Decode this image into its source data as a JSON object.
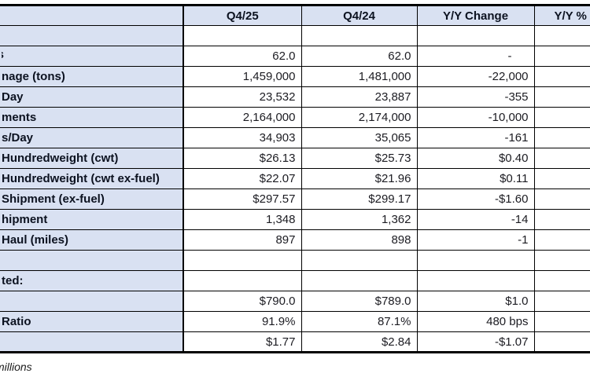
{
  "table": {
    "header": {
      "metric": "",
      "q4_25": "Q4/25",
      "q4_24": "Q4/24",
      "yy_change": "Y/Y Change",
      "yy_pct": "Y/Y % Change"
    },
    "rows": [
      {
        "label": "",
        "q4_25": "",
        "q4_24": "",
        "yy_change": "",
        "yy_pct": ""
      },
      {
        "label": "s",
        "q4_25": "62.0",
        "q4_24": "62.0",
        "yy_change": "-",
        "yy_pct": ""
      },
      {
        "label": "nage (tons)",
        "q4_25": "1,459,000",
        "q4_24": "1,481,000",
        "yy_change": "-22,000",
        "yy_pct": ""
      },
      {
        "label": "Day",
        "q4_25": "23,532",
        "q4_24": "23,887",
        "yy_change": "-355",
        "yy_pct": ""
      },
      {
        "label": "ments",
        "q4_25": "2,164,000",
        "q4_24": "2,174,000",
        "yy_change": "-10,000",
        "yy_pct": ""
      },
      {
        "label": "s/Day",
        "q4_25": "34,903",
        "q4_24": "35,065",
        "yy_change": "-161",
        "yy_pct": ""
      },
      {
        "label": "Hundredweight (cwt)",
        "q4_25": "$26.13",
        "q4_24": "$25.73",
        "yy_change": "$0.40",
        "yy_pct": ""
      },
      {
        "label": "Hundredweight (cwt ex-fuel)",
        "q4_25": "$22.07",
        "q4_24": "$21.96",
        "yy_change": "$0.11",
        "yy_pct": ""
      },
      {
        "label": "Shipment (ex-fuel)",
        "q4_25": "$297.57",
        "q4_24": "$299.17",
        "yy_change": "-$1.60",
        "yy_pct": ""
      },
      {
        "label": "hipment",
        "q4_25": "1,348",
        "q4_24": "1,362",
        "yy_change": "-14",
        "yy_pct": ""
      },
      {
        "label": "Haul (miles)",
        "q4_25": "897",
        "q4_24": "898",
        "yy_change": "-1",
        "yy_pct": ""
      },
      {
        "label": "",
        "q4_25": "",
        "q4_24": "",
        "yy_change": "",
        "yy_pct": ""
      },
      {
        "label": "ted:",
        "q4_25": "",
        "q4_24": "",
        "yy_change": "",
        "yy_pct": ""
      },
      {
        "label": "",
        "q4_25": "$790.0",
        "q4_24": "$789.0",
        "yy_change": "$1.0",
        "yy_pct": ""
      },
      {
        "label": "Ratio",
        "q4_25": "91.9%",
        "q4_24": "87.1%",
        "yy_change": "480 bps",
        "yy_pct": ""
      },
      {
        "label": "",
        "q4_25": "$1.77",
        "q4_24": "$2.84",
        "yy_change": "-$1.07",
        "yy_pct": ""
      }
    ]
  },
  "footnote": {
    "text": "millions"
  },
  "colors": {
    "header_fill": "#D9E1F2",
    "grid_border": "#000000",
    "text": "#1A1A1A",
    "background": "#FFFFFF"
  }
}
